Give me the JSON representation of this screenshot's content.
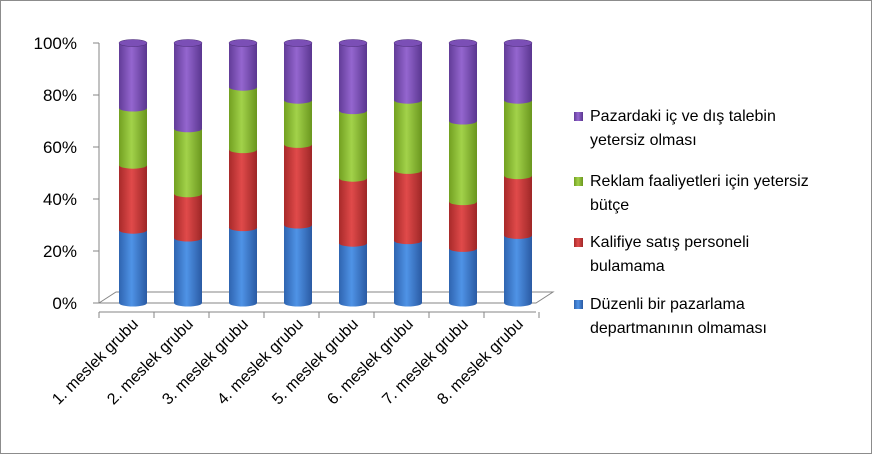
{
  "chart_data": {
    "type": "bar",
    "stacked": true,
    "percent_stacked": true,
    "categories": [
      "1. meslek grubu",
      "2. meslek grubu",
      "3. meslek grubu",
      "4. meslek grubu",
      "5. meslek grubu",
      "6. meslek grubu",
      "7. meslek grubu",
      "8. meslek grubu"
    ],
    "series": [
      {
        "name": "Düzenli bir pazarlama departmanının olmaması",
        "legend_lines": [
          "Düzenli bir pazarlama",
          "departmanının olmaması"
        ],
        "color": "#3a7bd5",
        "values": [
          28,
          25,
          29,
          30,
          23,
          24,
          21,
          26
        ]
      },
      {
        "name": "Kalifiye satış personeli bulamama",
        "legend_lines": [
          "Kalifiye satış personeli",
          "bulamama"
        ],
        "color": "#cc3b3b",
        "values": [
          25,
          17,
          30,
          31,
          25,
          27,
          18,
          23
        ]
      },
      {
        "name": "Reklam faaliyetleri için yetersiz bütçe",
        "legend_lines": [
          "Reklam faaliyetleri için yetersiz",
          "bütçe"
        ],
        "color": "#8fc031",
        "values": [
          22,
          25,
          24,
          17,
          26,
          27,
          31,
          29
        ]
      },
      {
        "name": "Pazardaki iç ve dış talebin yetersiz olması",
        "legend_lines": [
          "Pazardaki iç ve dış talebin",
          "yetersiz olması"
        ],
        "color": "#7b4fb6",
        "values": [
          25,
          33,
          17,
          22,
          26,
          22,
          30,
          22
        ]
      }
    ],
    "yticks": [
      "0%",
      "20%",
      "40%",
      "60%",
      "80%",
      "100%"
    ],
    "ylim": [
      0,
      100
    ],
    "grid": false,
    "legend_position": "right"
  }
}
